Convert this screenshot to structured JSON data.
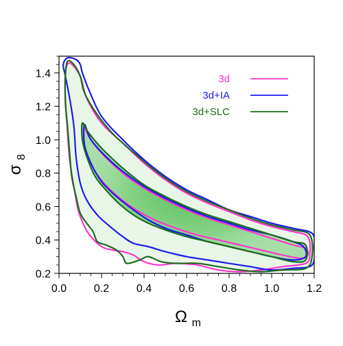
{
  "chart_data": {
    "type": "contour",
    "xlabel": {
      "base": "Ω",
      "subscript": "m"
    },
    "ylabel": {
      "base": "σ",
      "subscript": "8"
    },
    "xlim": [
      0.0,
      1.2
    ],
    "ylim": [
      0.2,
      1.5
    ],
    "xticks": [
      0.0,
      0.2,
      0.4,
      0.6,
      0.8,
      1.0,
      1.2
    ],
    "yticks": [
      0.2,
      0.4,
      0.6,
      0.8,
      1.0,
      1.2,
      1.4
    ],
    "xtick_labels": [
      "0.0",
      "0.2",
      "0.4",
      "0.6",
      "0.8",
      "1.0",
      "1.2"
    ],
    "ytick_labels": [
      "0.2",
      "0.4",
      "0.6",
      "0.8",
      "1.0",
      "1.2",
      "1.4"
    ],
    "grid": false,
    "legend_position": "top-right",
    "legend": [
      {
        "label": "3d",
        "color": "#ff33cc"
      },
      {
        "label": "3d+IA",
        "color": "#1a1aee"
      },
      {
        "label": "3d+SLC",
        "color": "#1d6b1d"
      }
    ],
    "fill_color": "#22aa22",
    "series": [
      {
        "name": "3d",
        "color": "#ff33cc",
        "contours": [
          {
            "level": "inner",
            "points": [
              [
                0.11,
                1.1
              ],
              [
                0.14,
                1.02
              ],
              [
                0.2,
                0.92
              ],
              [
                0.3,
                0.8
              ],
              [
                0.4,
                0.71
              ],
              [
                0.5,
                0.64
              ],
              [
                0.6,
                0.58
              ],
              [
                0.7,
                0.53
              ],
              [
                0.8,
                0.49
              ],
              [
                0.9,
                0.45
              ],
              [
                1.0,
                0.41
              ],
              [
                1.1,
                0.37
              ],
              [
                1.16,
                0.35
              ],
              [
                1.17,
                0.31
              ],
              [
                1.14,
                0.29
              ],
              [
                1.05,
                0.31
              ],
              [
                0.95,
                0.34
              ],
              [
                0.85,
                0.37
              ],
              [
                0.75,
                0.4
              ],
              [
                0.65,
                0.43
              ],
              [
                0.55,
                0.47
              ],
              [
                0.45,
                0.52
              ],
              [
                0.35,
                0.59
              ],
              [
                0.25,
                0.69
              ],
              [
                0.18,
                0.79
              ],
              [
                0.13,
                0.91
              ],
              [
                0.11,
                1.0
              ],
              [
                0.11,
                1.1
              ]
            ]
          },
          {
            "level": "outer",
            "points": [
              [
                0.05,
                1.46
              ],
              [
                0.1,
                1.38
              ],
              [
                0.13,
                1.25
              ],
              [
                0.2,
                1.1
              ],
              [
                0.3,
                0.98
              ],
              [
                0.4,
                0.86
              ],
              [
                0.5,
                0.76
              ],
              [
                0.6,
                0.68
              ],
              [
                0.7,
                0.62
              ],
              [
                0.8,
                0.57
              ],
              [
                0.9,
                0.52
              ],
              [
                1.0,
                0.48
              ],
              [
                1.1,
                0.45
              ],
              [
                1.17,
                0.42
              ],
              [
                1.18,
                0.32
              ],
              [
                1.16,
                0.26
              ],
              [
                1.05,
                0.24
              ],
              [
                0.95,
                0.22
              ],
              [
                0.85,
                0.21
              ],
              [
                0.75,
                0.22
              ],
              [
                0.65,
                0.25
              ],
              [
                0.55,
                0.26
              ],
              [
                0.47,
                0.25
              ],
              [
                0.4,
                0.27
              ],
              [
                0.35,
                0.31
              ],
              [
                0.3,
                0.33
              ],
              [
                0.25,
                0.34
              ],
              [
                0.2,
                0.36
              ],
              [
                0.15,
                0.42
              ],
              [
                0.12,
                0.48
              ],
              [
                0.09,
                0.58
              ],
              [
                0.07,
                0.72
              ],
              [
                0.05,
                0.88
              ],
              [
                0.04,
                1.05
              ],
              [
                0.03,
                1.25
              ],
              [
                0.03,
                1.4
              ],
              [
                0.05,
                1.46
              ]
            ]
          }
        ]
      },
      {
        "name": "3d+IA",
        "color": "#1a1aee",
        "contours": [
          {
            "level": "inner",
            "points": [
              [
                0.12,
                1.09
              ],
              [
                0.15,
                1.0
              ],
              [
                0.22,
                0.9
              ],
              [
                0.3,
                0.81
              ],
              [
                0.4,
                0.72
              ],
              [
                0.5,
                0.65
              ],
              [
                0.6,
                0.59
              ],
              [
                0.7,
                0.54
              ],
              [
                0.8,
                0.5
              ],
              [
                0.9,
                0.46
              ],
              [
                1.0,
                0.43
              ],
              [
                1.1,
                0.39
              ],
              [
                1.15,
                0.36
              ],
              [
                1.16,
                0.3
              ],
              [
                1.1,
                0.28
              ],
              [
                1.0,
                0.3
              ],
              [
                0.9,
                0.33
              ],
              [
                0.8,
                0.36
              ],
              [
                0.7,
                0.39
              ],
              [
                0.6,
                0.43
              ],
              [
                0.5,
                0.47
              ],
              [
                0.42,
                0.52
              ],
              [
                0.35,
                0.58
              ],
              [
                0.27,
                0.66
              ],
              [
                0.2,
                0.75
              ],
              [
                0.15,
                0.86
              ],
              [
                0.12,
                0.97
              ],
              [
                0.12,
                1.09
              ]
            ]
          },
          {
            "level": "outer",
            "points": [
              [
                0.04,
                1.49
              ],
              [
                0.08,
                1.48
              ],
              [
                0.1,
                1.45
              ],
              [
                0.11,
                1.4
              ],
              [
                0.14,
                1.3
              ],
              [
                0.2,
                1.14
              ],
              [
                0.3,
                1.0
              ],
              [
                0.4,
                0.88
              ],
              [
                0.5,
                0.78
              ],
              [
                0.6,
                0.7
              ],
              [
                0.7,
                0.64
              ],
              [
                0.8,
                0.58
              ],
              [
                0.9,
                0.54
              ],
              [
                1.0,
                0.5
              ],
              [
                1.1,
                0.47
              ],
              [
                1.19,
                0.44
              ],
              [
                1.2,
                0.36
              ],
              [
                1.19,
                0.25
              ],
              [
                1.1,
                0.23
              ],
              [
                1.0,
                0.22
              ],
              [
                0.9,
                0.24
              ],
              [
                0.8,
                0.26
              ],
              [
                0.7,
                0.28
              ],
              [
                0.6,
                0.3
              ],
              [
                0.5,
                0.33
              ],
              [
                0.42,
                0.36
              ],
              [
                0.35,
                0.38
              ],
              [
                0.3,
                0.42
              ],
              [
                0.24,
                0.48
              ],
              [
                0.18,
                0.55
              ],
              [
                0.13,
                0.64
              ],
              [
                0.1,
                0.74
              ],
              [
                0.08,
                0.9
              ],
              [
                0.07,
                1.08
              ],
              [
                0.05,
                1.25
              ],
              [
                0.03,
                1.38
              ],
              [
                0.02,
                1.45
              ],
              [
                0.04,
                1.49
              ]
            ]
          }
        ]
      },
      {
        "name": "3d+SLC",
        "color": "#1d6b1d",
        "contours": [
          {
            "level": "inner",
            "points": [
              [
                0.11,
                1.1
              ],
              [
                0.14,
                1.04
              ],
              [
                0.2,
                0.95
              ],
              [
                0.3,
                0.83
              ],
              [
                0.4,
                0.73
              ],
              [
                0.5,
                0.66
              ],
              [
                0.6,
                0.6
              ],
              [
                0.7,
                0.55
              ],
              [
                0.8,
                0.51
              ],
              [
                0.9,
                0.47
              ],
              [
                1.0,
                0.43
              ],
              [
                1.1,
                0.39
              ],
              [
                1.16,
                0.37
              ],
              [
                1.16,
                0.28
              ],
              [
                1.1,
                0.27
              ],
              [
                1.0,
                0.3
              ],
              [
                0.9,
                0.33
              ],
              [
                0.8,
                0.36
              ],
              [
                0.7,
                0.39
              ],
              [
                0.6,
                0.42
              ],
              [
                0.5,
                0.46
              ],
              [
                0.42,
                0.5
              ],
              [
                0.35,
                0.55
              ],
              [
                0.28,
                0.62
              ],
              [
                0.22,
                0.7
              ],
              [
                0.17,
                0.78
              ],
              [
                0.13,
                0.9
              ],
              [
                0.11,
                1.0
              ],
              [
                0.11,
                1.1
              ]
            ]
          },
          {
            "level": "outer",
            "points": [
              [
                0.04,
                1.47
              ],
              [
                0.07,
                1.45
              ],
              [
                0.1,
                1.38
              ],
              [
                0.12,
                1.28
              ],
              [
                0.18,
                1.15
              ],
              [
                0.25,
                1.04
              ],
              [
                0.3,
                0.98
              ],
              [
                0.4,
                0.87
              ],
              [
                0.5,
                0.77
              ],
              [
                0.6,
                0.69
              ],
              [
                0.7,
                0.63
              ],
              [
                0.8,
                0.58
              ],
              [
                0.9,
                0.53
              ],
              [
                1.0,
                0.49
              ],
              [
                1.1,
                0.46
              ],
              [
                1.18,
                0.43
              ],
              [
                1.19,
                0.3
              ],
              [
                1.16,
                0.23
              ],
              [
                1.05,
                0.22
              ],
              [
                0.95,
                0.21
              ],
              [
                0.85,
                0.22
              ],
              [
                0.75,
                0.24
              ],
              [
                0.65,
                0.26
              ],
              [
                0.55,
                0.26
              ],
              [
                0.48,
                0.27
              ],
              [
                0.42,
                0.3
              ],
              [
                0.38,
                0.28
              ],
              [
                0.32,
                0.26
              ],
              [
                0.3,
                0.3
              ],
              [
                0.27,
                0.34
              ],
              [
                0.22,
                0.37
              ],
              [
                0.18,
                0.39
              ],
              [
                0.16,
                0.45
              ],
              [
                0.13,
                0.5
              ],
              [
                0.1,
                0.56
              ],
              [
                0.08,
                0.66
              ],
              [
                0.06,
                0.78
              ],
              [
                0.05,
                0.92
              ],
              [
                0.04,
                1.08
              ],
              [
                0.03,
                1.22
              ],
              [
                0.03,
                1.38
              ],
              [
                0.04,
                1.47
              ]
            ]
          }
        ]
      }
    ]
  }
}
